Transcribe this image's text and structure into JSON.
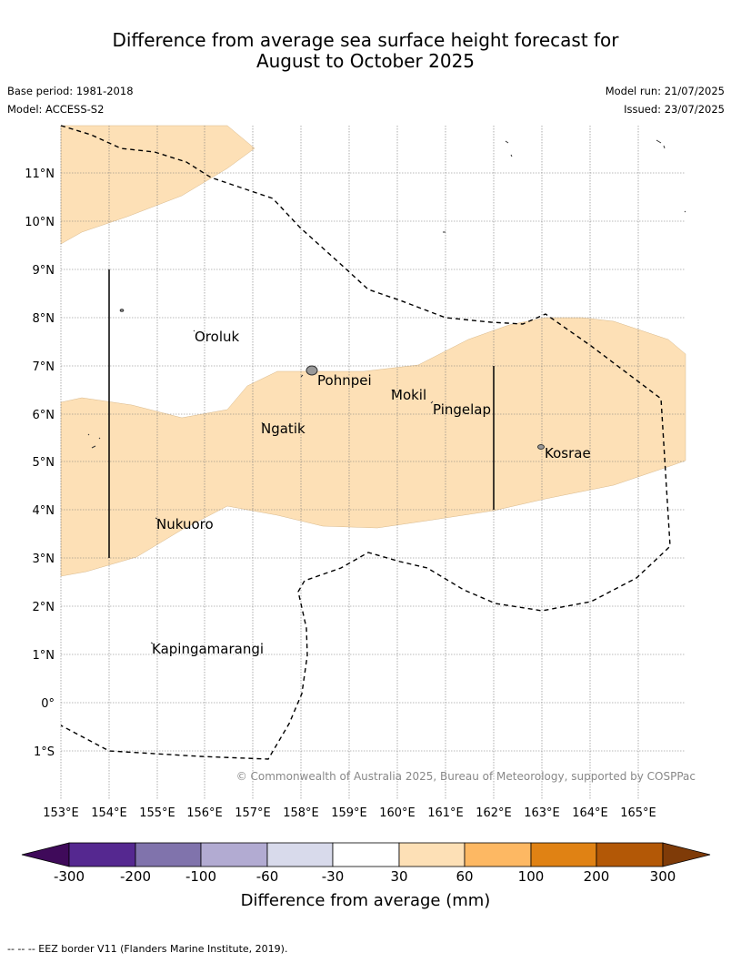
{
  "title": {
    "line1": "Difference from average sea surface height forecast for",
    "line2": "August to October 2025"
  },
  "meta": {
    "base_period": "Base period: 1981-2018",
    "model": "Model: ACCESS-S2",
    "model_run": "Model run: 21/07/2025",
    "issued": "Issued: 23/07/2025"
  },
  "map": {
    "lon_labels": [
      "153°E",
      "154°E",
      "155°E",
      "156°E",
      "157°E",
      "158°E",
      "159°E",
      "160°E",
      "161°E",
      "162°E",
      "163°E",
      "164°E",
      "165°E"
    ],
    "lat_labels": [
      "11°N",
      "10°N",
      "9°N",
      "8°N",
      "7°N",
      "6°N",
      "5°N",
      "4°N",
      "3°N",
      "2°N",
      "1°N",
      "0°",
      "1°S"
    ],
    "places": [
      "Oroluk",
      "Pohnpei",
      "Mokil",
      "Pingelap",
      "Ngatik",
      "Kosrae",
      "Nukuoro",
      "Kapingamarangi"
    ],
    "copyright": "© Commonwealth of Australia 2025, Bureau of Meteorology, supported by COSPPac",
    "anomaly_fill_color": "#fde0b6",
    "land_color": "#999999"
  },
  "colorbar": {
    "title": "Difference from average (mm)",
    "ticks": [
      "-300",
      "-200",
      "-100",
      "-60",
      "-30",
      "30",
      "60",
      "100",
      "200",
      "300"
    ],
    "colors": [
      "#3f0a5a",
      "#552890",
      "#8073ac",
      "#b2abd2",
      "#d8daeb",
      "#ffffff",
      "#fde0b6",
      "#fdb863",
      "#e08214",
      "#b35806",
      "#7f3b08"
    ]
  },
  "footer": "-- -- -- EEZ border V11 (Flanders Marine Institute, 2019)."
}
